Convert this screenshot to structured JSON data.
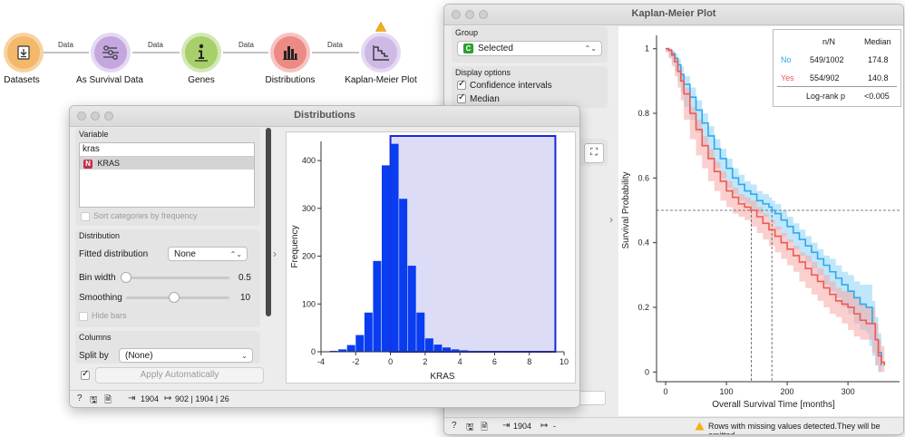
{
  "workflow": {
    "nodes": [
      {
        "id": "datasets",
        "label": "Datasets",
        "icon": "download-icon",
        "color": "#f3b86a",
        "ring": "#f7d3a2"
      },
      {
        "id": "as-survival",
        "label": "As Survival Data",
        "icon": "survival-data-icon",
        "color": "#b28fd0",
        "ring": "#d9c7ea"
      },
      {
        "id": "genes",
        "label": "Genes",
        "icon": "info-icon",
        "color": "#a7cf6a",
        "ring": "#d3e8b6"
      },
      {
        "id": "distributions",
        "label": "Distributions",
        "icon": "bar-chart-icon",
        "color": "#ec8a84",
        "ring": "#f5c4c1"
      },
      {
        "id": "kaplan-meier",
        "label": "Kaplan-Meier Plot",
        "icon": "step-curve-icon",
        "color": "#c7b2e0",
        "ring": "#e4d9f1"
      }
    ],
    "link_labels": [
      "Data",
      "Data",
      "Data",
      "Data"
    ]
  },
  "distributions_window": {
    "title": "Distributions",
    "variable": {
      "section_title": "Variable",
      "filter_value": "kras",
      "items": [
        {
          "badge": "N",
          "label": "KRAS"
        }
      ],
      "sort_label": "Sort categories by frequency"
    },
    "distribution": {
      "section_title": "Distribution",
      "fitted_label": "Fitted distribution",
      "fitted_value": "None",
      "bin_width_label": "Bin width",
      "bin_width_value": "0.5",
      "bin_width_level": 0.0,
      "smoothing_label": "Smoothing",
      "smoothing_value": "10",
      "smoothing_level": 0.45,
      "hide_bars_label": "Hide bars"
    },
    "columns": {
      "section_title": "Columns",
      "split_by_label": "Split by",
      "split_by_value": "(None)"
    },
    "apply_label": "Apply Automatically",
    "status": {
      "input_count": "1904",
      "output_text": "902 | 1904 | 26"
    }
  },
  "km_window": {
    "title": "Kaplan-Meier Plot",
    "group": {
      "section_title": "Group",
      "badge": "C",
      "value": "Selected"
    },
    "display_options": {
      "section_title": "Display options",
      "items": [
        {
          "label": "Confidence intervals",
          "checked": true
        },
        {
          "label": "Median",
          "checked": true
        }
      ]
    },
    "status": {
      "input_count": "1904",
      "output_text": "-",
      "warning": "Rows with missing values detected.They will be omitted."
    }
  },
  "chart_data": [
    {
      "type": "bar",
      "xlabel": "KRAS",
      "ylabel": "Frequency",
      "xlim": [
        -4,
        10
      ],
      "ylim": [
        0,
        440
      ],
      "xticks": [
        -4,
        -2,
        0,
        2,
        4,
        6,
        8,
        10
      ],
      "yticks": [
        0,
        100,
        200,
        300,
        400
      ],
      "bin_width": 0.5,
      "bins": [
        {
          "x0": -3.5,
          "value": 2
        },
        {
          "x0": -3.0,
          "value": 5
        },
        {
          "x0": -2.5,
          "value": 14
        },
        {
          "x0": -2.0,
          "value": 35
        },
        {
          "x0": -1.5,
          "value": 82
        },
        {
          "x0": -1.0,
          "value": 190
        },
        {
          "x0": -0.5,
          "value": 390
        },
        {
          "x0": 0.0,
          "value": 435
        },
        {
          "x0": 0.5,
          "value": 320
        },
        {
          "x0": 1.0,
          "value": 180
        },
        {
          "x0": 1.5,
          "value": 82
        },
        {
          "x0": 2.0,
          "value": 28
        },
        {
          "x0": 2.5,
          "value": 15
        },
        {
          "x0": 3.0,
          "value": 9
        },
        {
          "x0": 3.5,
          "value": 5
        },
        {
          "x0": 4.0,
          "value": 3
        },
        {
          "x0": 4.5,
          "value": 2
        },
        {
          "x0": 5.0,
          "value": 1
        },
        {
          "x0": 5.5,
          "value": 1
        },
        {
          "x0": 6.0,
          "value": 1
        }
      ],
      "color": "#0a3cf0",
      "selection": {
        "x_from": 0,
        "x_to": 9.5,
        "fill": "#dcdcf7",
        "border": "#1a27d6"
      }
    },
    {
      "type": "line",
      "xlabel": "Overall Survival Time [months]",
      "ylabel": "Survival Probability",
      "xlim": [
        -15,
        370
      ],
      "ylim": [
        -0.03,
        1.03
      ],
      "xticks": [
        0,
        100,
        200,
        300
      ],
      "yticks": [
        0,
        0.2,
        0.4,
        0.6,
        0.8,
        1
      ],
      "median_line": 0.5,
      "series": [
        {
          "name": "No",
          "color": "#2ea8ee",
          "band_color": "#8dd1f5",
          "median": 174.8,
          "x": [
            0,
            5,
            10,
            15,
            20,
            25,
            30,
            40,
            50,
            60,
            70,
            80,
            90,
            100,
            110,
            120,
            130,
            140,
            150,
            160,
            170,
            175,
            180,
            190,
            200,
            210,
            220,
            230,
            240,
            250,
            260,
            270,
            280,
            290,
            300,
            310,
            320,
            330,
            335,
            340,
            345,
            350,
            355
          ],
          "y": [
            1,
            0.995,
            0.985,
            0.97,
            0.95,
            0.92,
            0.89,
            0.85,
            0.81,
            0.77,
            0.73,
            0.69,
            0.66,
            0.63,
            0.6,
            0.58,
            0.56,
            0.55,
            0.53,
            0.52,
            0.51,
            0.5,
            0.49,
            0.47,
            0.45,
            0.43,
            0.41,
            0.39,
            0.37,
            0.35,
            0.33,
            0.31,
            0.29,
            0.27,
            0.25,
            0.23,
            0.21,
            0.2,
            0.2,
            0.15,
            0.1,
            0.06,
            0.02
          ],
          "lower": [
            1,
            0.99,
            0.975,
            0.955,
            0.93,
            0.9,
            0.865,
            0.82,
            0.78,
            0.74,
            0.7,
            0.66,
            0.63,
            0.6,
            0.57,
            0.55,
            0.53,
            0.52,
            0.5,
            0.49,
            0.48,
            0.47,
            0.46,
            0.44,
            0.42,
            0.4,
            0.38,
            0.36,
            0.34,
            0.32,
            0.3,
            0.27,
            0.25,
            0.23,
            0.2,
            0.18,
            0.15,
            0.13,
            0.12,
            0.08,
            0.05,
            0.02,
            0.0
          ],
          "upper": [
            1,
            1,
            0.995,
            0.985,
            0.97,
            0.945,
            0.915,
            0.88,
            0.84,
            0.8,
            0.76,
            0.72,
            0.69,
            0.66,
            0.63,
            0.61,
            0.59,
            0.58,
            0.56,
            0.55,
            0.54,
            0.53,
            0.52,
            0.5,
            0.48,
            0.46,
            0.44,
            0.42,
            0.4,
            0.38,
            0.36,
            0.35,
            0.33,
            0.31,
            0.3,
            0.28,
            0.27,
            0.27,
            0.27,
            0.22,
            0.17,
            0.12,
            0.06
          ]
        },
        {
          "name": "Yes",
          "color": "#ee5a55",
          "band_color": "#f5a8a4",
          "median": 140.8,
          "x": [
            0,
            5,
            10,
            15,
            20,
            25,
            30,
            40,
            50,
            60,
            70,
            80,
            90,
            100,
            110,
            120,
            130,
            140,
            150,
            160,
            170,
            180,
            190,
            200,
            210,
            220,
            230,
            240,
            250,
            260,
            270,
            280,
            290,
            300,
            310,
            320,
            330,
            340,
            345,
            350,
            355,
            360
          ],
          "y": [
            1,
            0.995,
            0.98,
            0.96,
            0.93,
            0.9,
            0.86,
            0.8,
            0.75,
            0.7,
            0.66,
            0.62,
            0.59,
            0.56,
            0.54,
            0.52,
            0.51,
            0.5,
            0.48,
            0.46,
            0.44,
            0.42,
            0.4,
            0.38,
            0.36,
            0.34,
            0.32,
            0.3,
            0.28,
            0.26,
            0.24,
            0.22,
            0.21,
            0.2,
            0.18,
            0.16,
            0.15,
            0.15,
            0.1,
            0.05,
            0.03,
            0.02
          ],
          "lower": [
            1,
            0.99,
            0.97,
            0.945,
            0.915,
            0.88,
            0.84,
            0.78,
            0.72,
            0.67,
            0.63,
            0.59,
            0.56,
            0.53,
            0.51,
            0.49,
            0.48,
            0.47,
            0.45,
            0.43,
            0.41,
            0.39,
            0.37,
            0.35,
            0.33,
            0.31,
            0.28,
            0.26,
            0.24,
            0.22,
            0.2,
            0.18,
            0.17,
            0.15,
            0.13,
            0.11,
            0.1,
            0.1,
            0.06,
            0.02,
            0.0,
            0.0
          ],
          "upper": [
            1,
            1,
            0.99,
            0.975,
            0.945,
            0.92,
            0.88,
            0.82,
            0.78,
            0.73,
            0.69,
            0.65,
            0.62,
            0.59,
            0.57,
            0.55,
            0.54,
            0.53,
            0.51,
            0.49,
            0.47,
            0.45,
            0.43,
            0.41,
            0.39,
            0.37,
            0.36,
            0.34,
            0.32,
            0.3,
            0.28,
            0.26,
            0.25,
            0.25,
            0.23,
            0.21,
            0.2,
            0.2,
            0.15,
            0.1,
            0.08,
            0.06
          ]
        }
      ],
      "table": {
        "headers": [
          "",
          "n/N",
          "Median"
        ],
        "rows": [
          {
            "group": "No",
            "nN": "549/1002",
            "median": "174.8"
          },
          {
            "group": "Yes",
            "nN": "554/902",
            "median": "140.8"
          }
        ],
        "logrank_label": "Log-rank p",
        "logrank_value": "<0.005"
      }
    }
  ]
}
